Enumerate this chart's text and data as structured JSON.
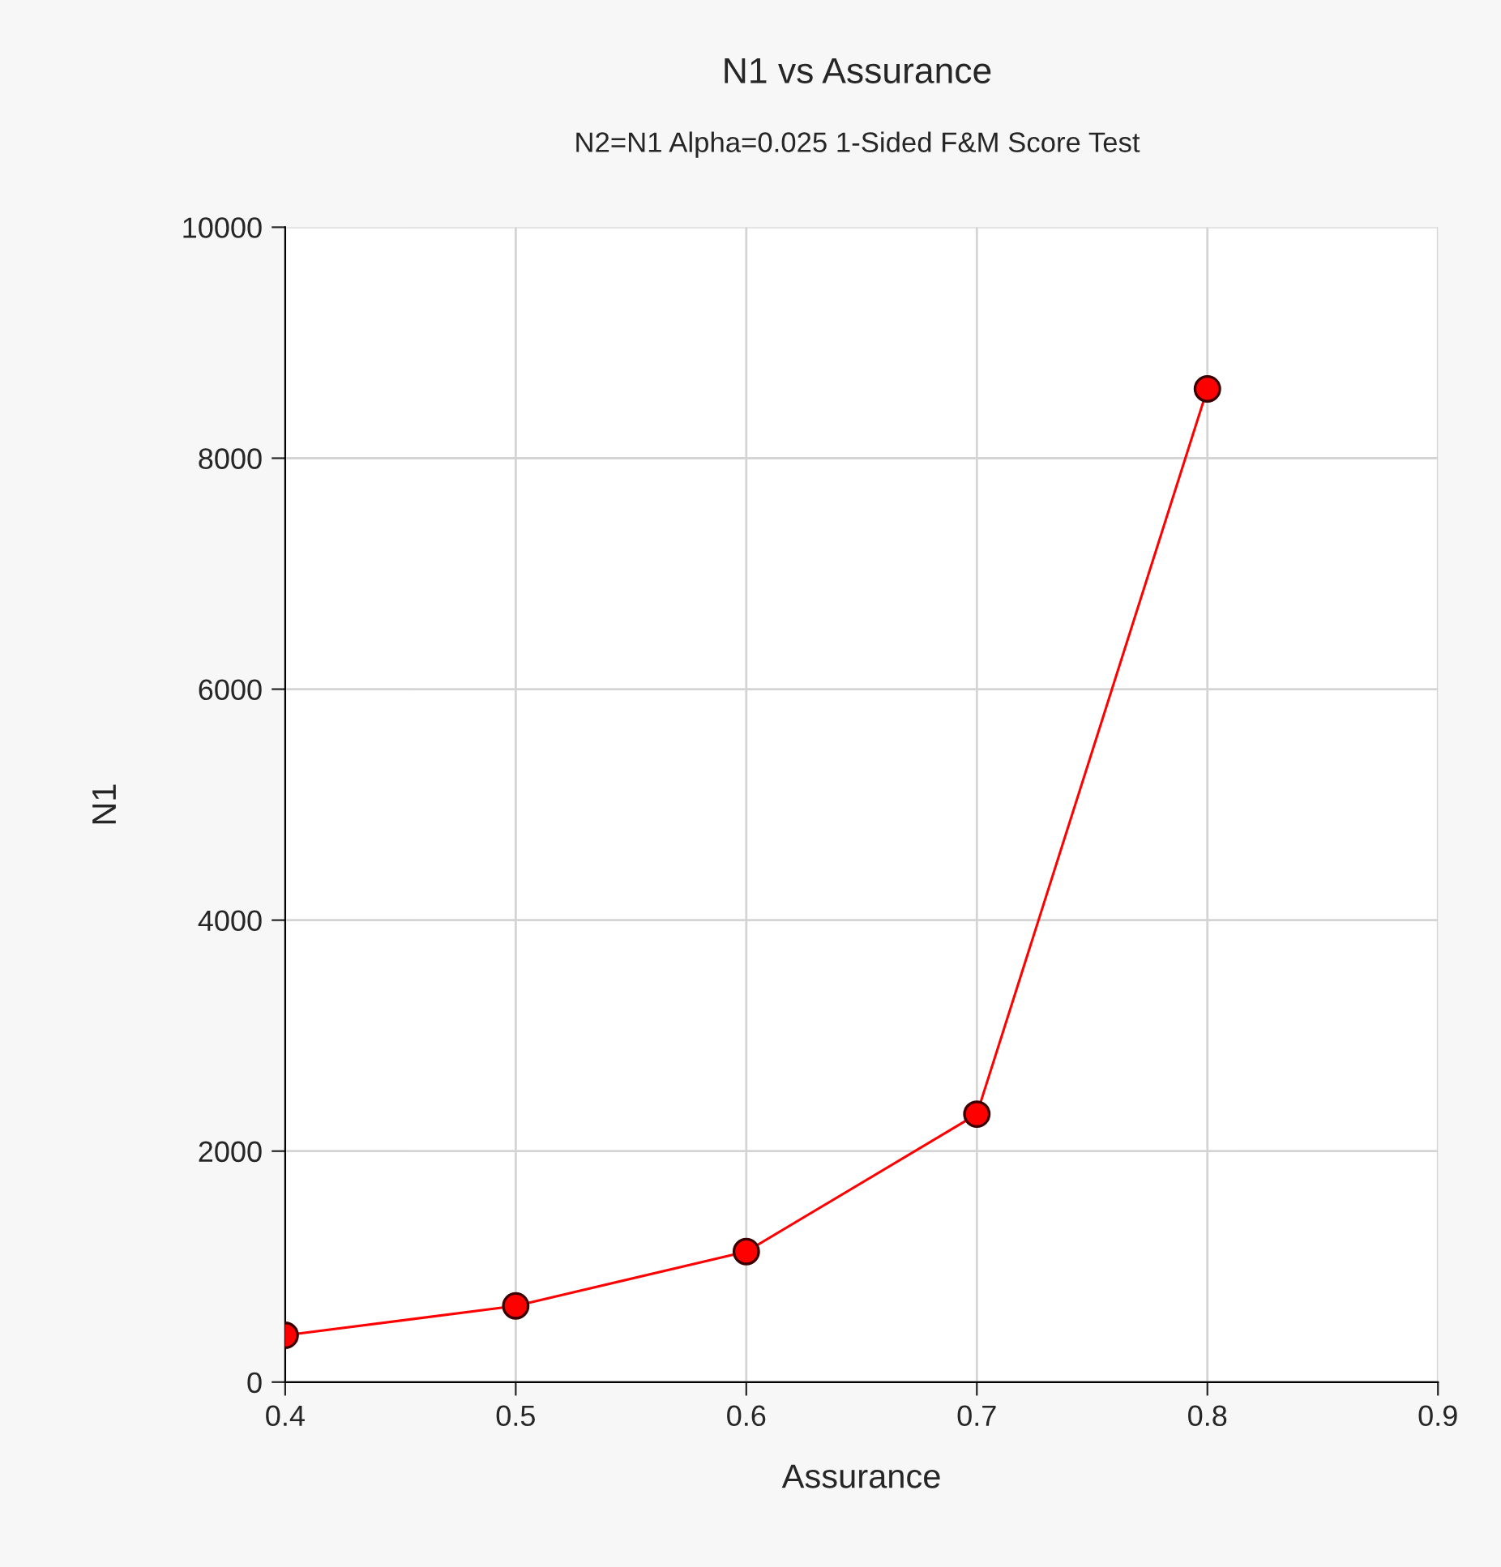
{
  "chart_data": {
    "type": "line",
    "title": "N1 vs Assurance",
    "subtitle": "N2=N1 Alpha=0.025 1-Sided F&M Score Test",
    "xlabel": "Assurance",
    "ylabel": "N1",
    "x": [
      0.4,
      0.5,
      0.6,
      0.7,
      0.8
    ],
    "series": [
      {
        "color": "#ff0000",
        "values": [
          405,
          660,
          1130,
          2320,
          8600
        ]
      }
    ],
    "xlim": [
      0.4,
      0.9
    ],
    "xticks": [
      0.4,
      0.5,
      0.6,
      0.7,
      0.8,
      0.9
    ],
    "ylim": [
      0,
      10000
    ],
    "yticks": [
      0,
      2000,
      4000,
      6000,
      8000,
      10000
    ],
    "grid": true,
    "marker": "circle",
    "line_style": "solid"
  }
}
